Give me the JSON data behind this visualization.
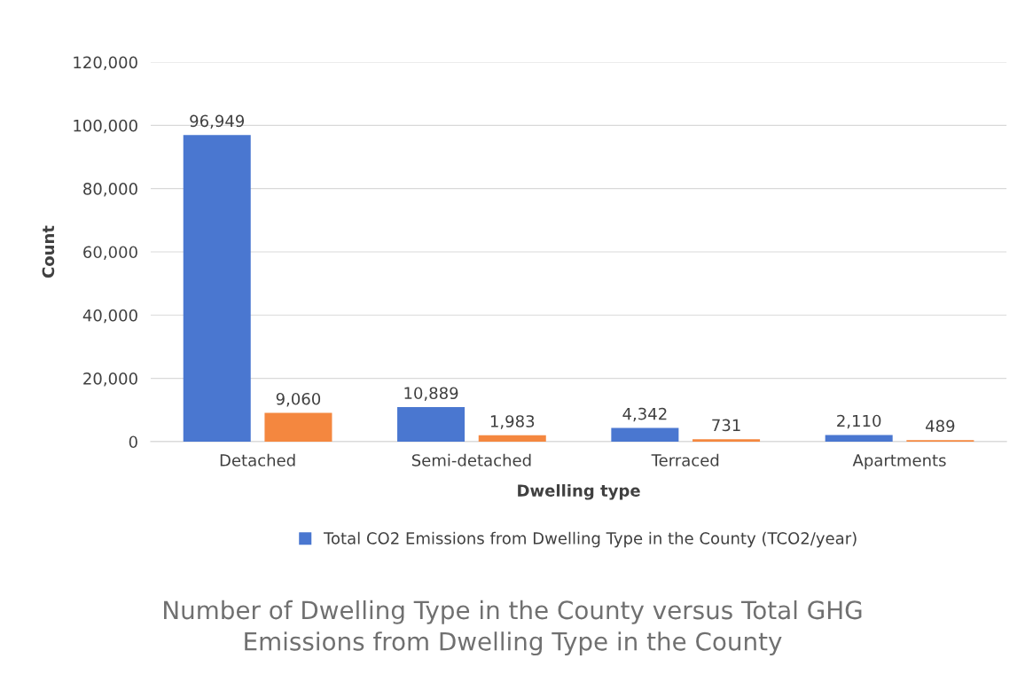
{
  "chart_data": {
    "type": "bar",
    "title": "Number of Dwelling Type in the County versus Total GHG\nEmissions from Dwelling Type in the County",
    "xlabel": "Dwelling type",
    "ylabel": "Count",
    "categories": [
      "Detached",
      "Semi-detached",
      "Terraced",
      "Apartments"
    ],
    "series": [
      {
        "name": "Total CO2 Emissions from Dwelling Type in the County (TCO2/year)",
        "color": "#4a77d0",
        "values": [
          96949,
          10889,
          4342,
          2110
        ],
        "value_labels": [
          "96,949",
          "10,889",
          "4,342",
          "2,110"
        ]
      },
      {
        "color": "#f4873f",
        "values": [
          9060,
          1983,
          731,
          489
        ],
        "value_labels": [
          "9,060",
          "1,983",
          "731",
          "489"
        ]
      }
    ],
    "ylim": [
      0,
      120000
    ],
    "yticks": [
      {
        "value": 0,
        "label": "0"
      },
      {
        "value": 20000,
        "label": "20,000"
      },
      {
        "value": 40000,
        "label": "40,000"
      },
      {
        "value": 60000,
        "label": "60,000"
      },
      {
        "value": 80000,
        "label": "80,000"
      },
      {
        "value": 100000,
        "label": "100,000"
      },
      {
        "value": 120000,
        "label": "120,000"
      }
    ],
    "grid": "y",
    "legend": "bottom"
  }
}
